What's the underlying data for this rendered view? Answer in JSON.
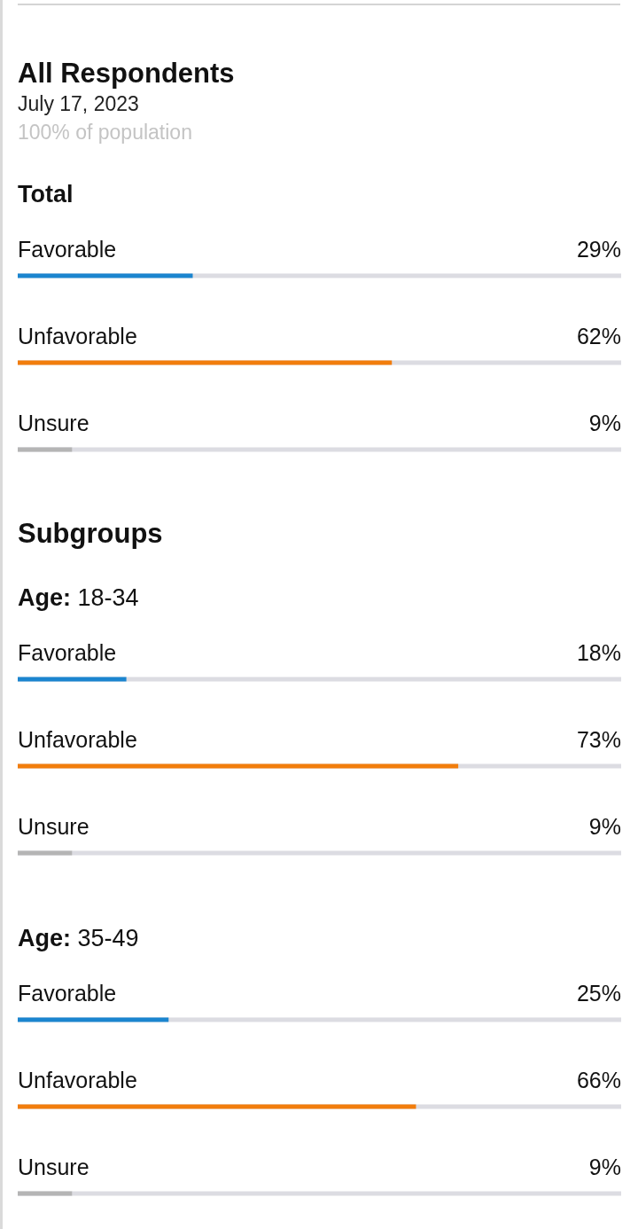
{
  "chart_data": [
    {
      "type": "other",
      "title": "All Respondents",
      "subtitle": "July 17, 2023",
      "annotations": [
        "100% of population"
      ]
    },
    {
      "type": "bar",
      "orientation": "horizontal",
      "title": "Total",
      "categories": [
        "Favorable",
        "Unfavorable",
        "Unsure"
      ],
      "values": [
        29,
        62,
        9
      ],
      "colors": [
        "#1b85cf",
        "#f27d0c",
        "#b5b5b5"
      ],
      "xlim": [
        0,
        100
      ],
      "value_labels": [
        "29%",
        "62%",
        "9%"
      ],
      "tick_labels": "y"
    },
    {
      "type": "other",
      "title": "Subgroups"
    },
    {
      "type": "bar",
      "orientation": "horizontal",
      "title": "Age: 18-34",
      "categories": [
        "Favorable",
        "Unfavorable",
        "Unsure"
      ],
      "values": [
        18,
        73,
        9
      ],
      "colors": [
        "#1b85cf",
        "#f27d0c",
        "#b5b5b5"
      ],
      "xlim": [
        0,
        100
      ],
      "value_labels": [
        "18%",
        "73%",
        "9%"
      ],
      "tick_labels": "y"
    },
    {
      "type": "bar",
      "orientation": "horizontal",
      "title": "Age: 35-49",
      "categories": [
        "Favorable",
        "Unfavorable",
        "Unsure"
      ],
      "values": [
        25,
        66,
        9
      ],
      "colors": [
        "#1b85cf",
        "#f27d0c",
        "#b5b5b5"
      ],
      "xlim": [
        0,
        100
      ],
      "value_labels": [
        "25%",
        "66%",
        "9%"
      ],
      "tick_labels": "y"
    }
  ]
}
